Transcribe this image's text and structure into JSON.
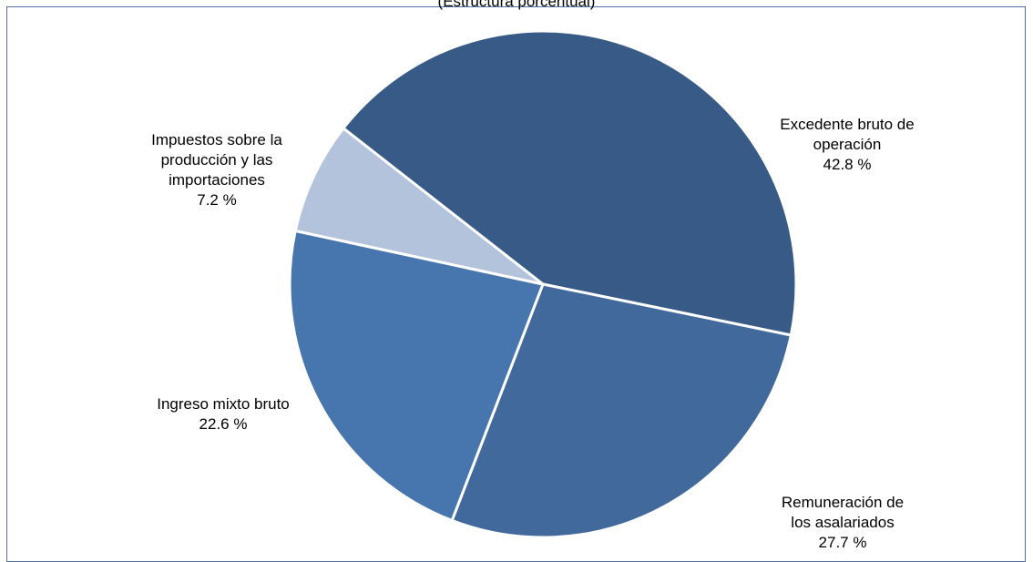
{
  "chart_data": {
    "type": "pie",
    "title": "(Estructura porcentual)",
    "start_angle_deg": 142,
    "direction": "clockwise",
    "slices": [
      {
        "lines": [
          "Excedente bruto de",
          "operación"
        ],
        "value_label": "42.8 %",
        "value": 42.8,
        "color": "#375a87"
      },
      {
        "lines": [
          "Remuneración de",
          "los asalariados"
        ],
        "value_label": "27.7 %",
        "value": 27.7,
        "color": "#41699c"
      },
      {
        "lines": [
          "Ingreso mixto bruto"
        ],
        "value_label": "22.6 %",
        "value": 22.6,
        "color": "#4776ae"
      },
      {
        "lines": [
          "Impuestos sobre la",
          "producción y las",
          "importaciones"
        ],
        "value_label": "7.2 %",
        "value": 7.2,
        "color": "#b4c3dc"
      }
    ]
  }
}
